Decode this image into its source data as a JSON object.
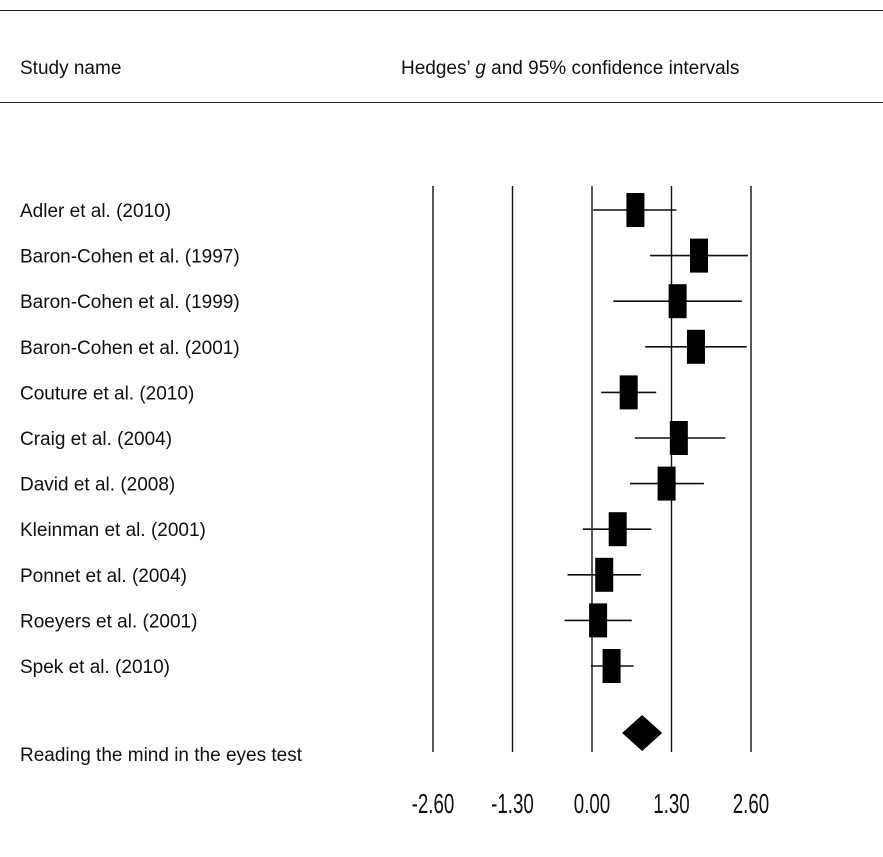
{
  "header": {
    "study_col": "Study name",
    "effect_col_pre": "Hedges’ ",
    "effect_col_g": "g",
    "effect_col_post": " and 95% confidence intervals"
  },
  "chart_data": {
    "type": "forest",
    "title": "",
    "xlabel": "",
    "xlim": [
      -2.6,
      2.6
    ],
    "xticks": [
      -2.6,
      -1.3,
      0.0,
      1.3,
      2.6
    ],
    "xtick_labels": [
      "-2.60",
      "-1.30",
      "0.00",
      "1.30",
      "2.60"
    ],
    "gridlines_at": [
      -2.6,
      -1.3,
      0.0,
      1.3,
      2.6
    ],
    "studies": [
      {
        "name": "Adler et al. (2010)",
        "g": 0.71,
        "lower": 0.02,
        "upper": 1.38
      },
      {
        "name": "Baron-Cohen et al. (1997)",
        "g": 1.75,
        "lower": 0.95,
        "upper": 2.55
      },
      {
        "name": "Baron-Cohen et al. (1999)",
        "g": 1.4,
        "lower": 0.35,
        "upper": 2.45
      },
      {
        "name": "Baron-Cohen et al. (2001)",
        "g": 1.7,
        "lower": 0.87,
        "upper": 2.53
      },
      {
        "name": "Couture et al. (2010)",
        "g": 0.6,
        "lower": 0.15,
        "upper": 1.05
      },
      {
        "name": "Craig et al. (2004)",
        "g": 1.42,
        "lower": 0.7,
        "upper": 2.18
      },
      {
        "name": "David et al. (2008)",
        "g": 1.22,
        "lower": 0.62,
        "upper": 1.83
      },
      {
        "name": "Kleinman et al. (2001)",
        "g": 0.42,
        "lower": -0.15,
        "upper": 0.97
      },
      {
        "name": "Ponnet et al. (2004)",
        "g": 0.2,
        "lower": -0.4,
        "upper": 0.8
      },
      {
        "name": "Roeyers et al. (2001)",
        "g": 0.1,
        "lower": -0.45,
        "upper": 0.65
      },
      {
        "name": "Spek et al. (2010)",
        "g": 0.32,
        "lower": -0.02,
        "upper": 0.68
      }
    ],
    "pooled": {
      "name": "Reading the mind in the eyes test",
      "g": 0.82,
      "lower": 0.55,
      "upper": 1.1
    }
  }
}
